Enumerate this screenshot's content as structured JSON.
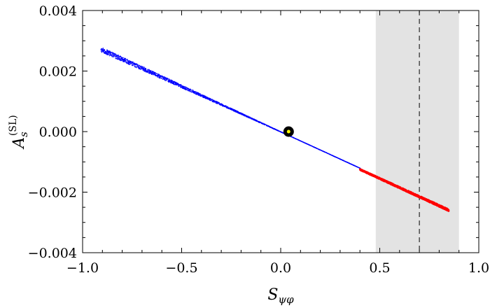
{
  "chart_data": {
    "type": "scatter",
    "title": "",
    "xlabel": {
      "main": "S",
      "sub": "ψφ"
    },
    "ylabel": {
      "main": "A",
      "sub": "s",
      "sup": "(SL)"
    },
    "xlim": [
      -1.0,
      1.0
    ],
    "ylim": [
      -0.004,
      0.004
    ],
    "x_ticks": [
      -1.0,
      -0.5,
      0.0,
      0.5,
      1.0
    ],
    "x_tick_labels": [
      "−1.0",
      "−0.5",
      "0.0",
      "0.5",
      "1.0"
    ],
    "y_ticks": [
      -0.004,
      -0.002,
      0.0,
      0.002,
      0.004
    ],
    "y_tick_labels": [
      "−0.004",
      "−0.002",
      "0.000",
      "0.002",
      "0.004"
    ],
    "grid": false,
    "legend": "none",
    "bands": [
      {
        "x_range": [
          0.48,
          0.9
        ],
        "color": "#e3e3e3"
      }
    ],
    "vlines": [
      {
        "x": 0.7,
        "style": "dashed",
        "color": "#000000"
      }
    ],
    "series": [
      {
        "color": "#0000ff",
        "x_range": [
          -0.91,
          0.4
        ],
        "slope": -0.003,
        "y_spread_at_x_min": 0.00016
      },
      {
        "color": "#ff0000",
        "x_range": [
          0.4,
          0.85
        ],
        "slope": -0.003,
        "y_spread_at_x_min": 6e-05
      }
    ],
    "marker": {
      "x": 0.04,
      "y": 0.0,
      "outer_color": "#000000",
      "inner_color": "#ffff00"
    }
  }
}
